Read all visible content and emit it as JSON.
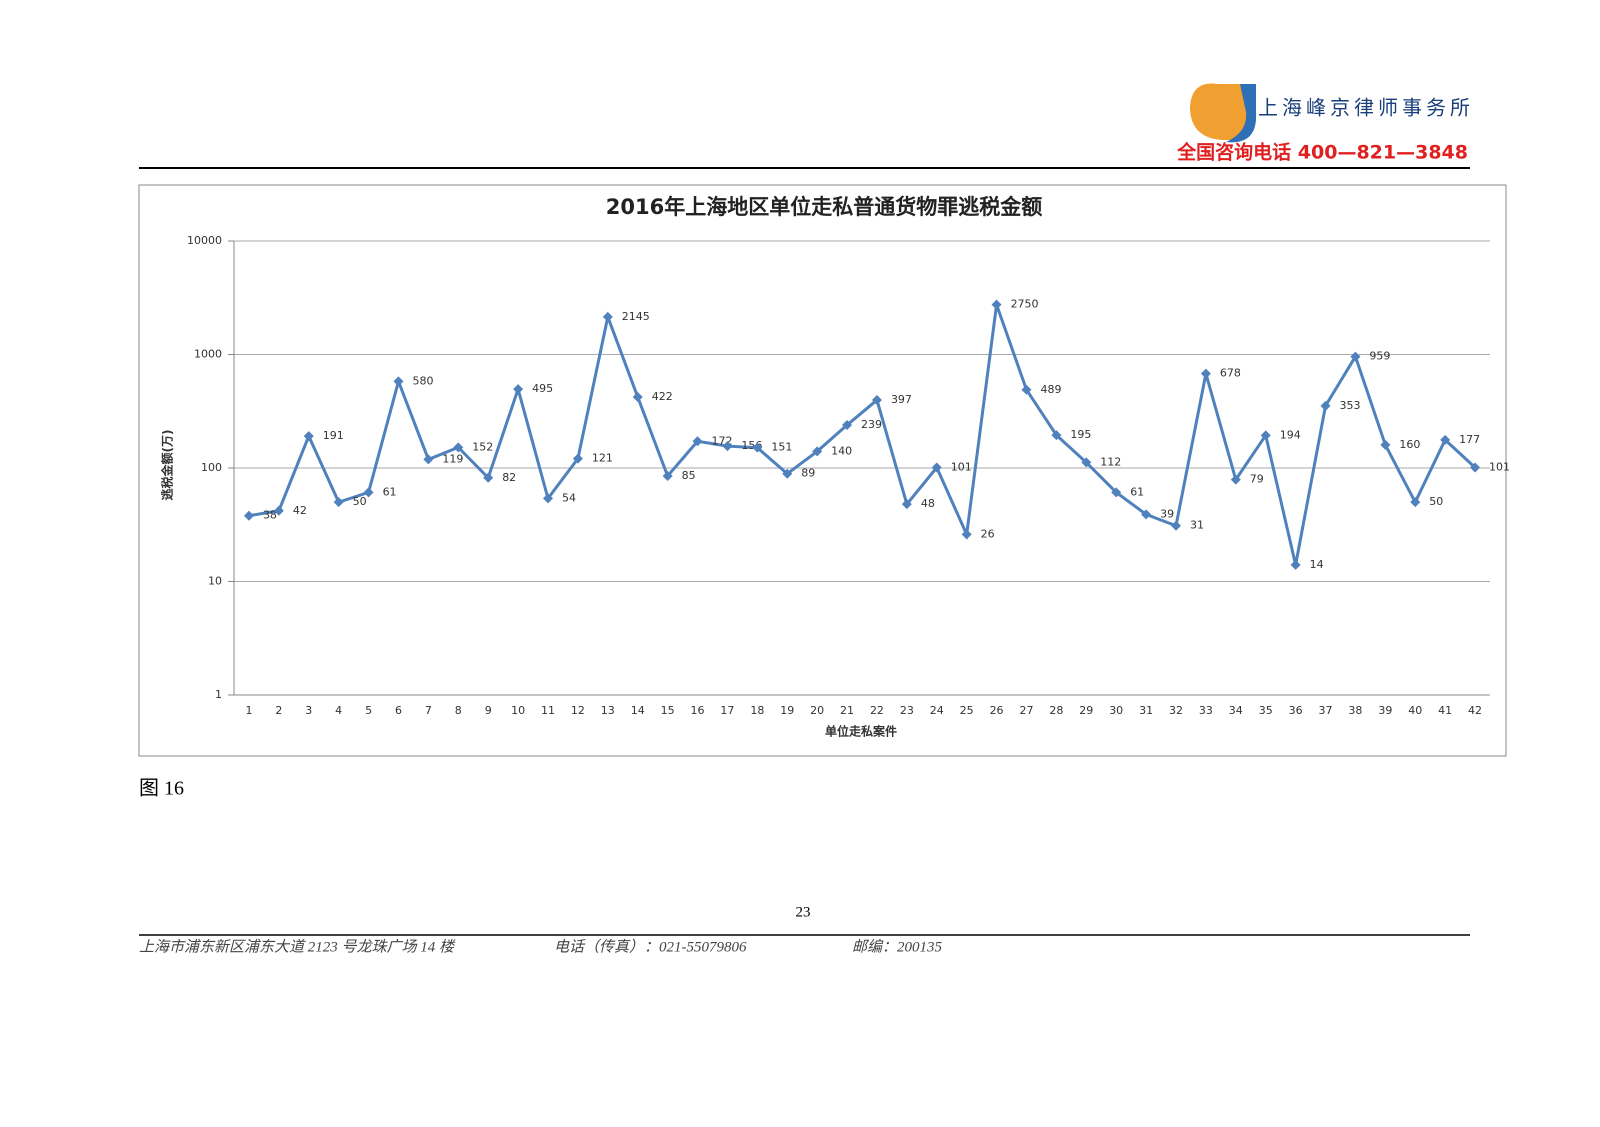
{
  "header": {
    "firm": "上海峰京律师事务所",
    "hotline": "全国咨询电话 400—821—3848"
  },
  "chart_data": {
    "type": "line",
    "title": "2016年上海地区单位走私普通货物罪逃税金额",
    "y_label": "逃税金额(万)",
    "x_label": "单位走私案件",
    "categories": [
      "1",
      "2",
      "3",
      "4",
      "5",
      "6",
      "7",
      "8",
      "9",
      "10",
      "11",
      "12",
      "13",
      "14",
      "15",
      "16",
      "17",
      "18",
      "19",
      "20",
      "21",
      "22",
      "23",
      "24",
      "25",
      "26",
      "27",
      "28",
      "29",
      "30",
      "31",
      "32",
      "33",
      "34",
      "35",
      "36",
      "37",
      "38",
      "39",
      "40",
      "41",
      "42"
    ],
    "values": [
      38,
      42,
      191,
      50,
      61,
      580,
      119,
      152,
      82,
      495,
      54,
      121,
      2145,
      422,
      85,
      172,
      156,
      151,
      89,
      140,
      239,
      397,
      48,
      101,
      26,
      2750,
      489,
      195,
      112,
      61,
      39,
      31,
      678,
      79,
      194,
      14,
      353,
      959,
      160,
      50,
      177,
      101
    ],
    "color": "#4f81bd",
    "log_scale": true,
    "ylim": [
      1,
      10000
    ],
    "yticks": [
      1,
      10,
      100,
      1000,
      10000
    ],
    "grid": true
  },
  "caption": "图 16",
  "page_number": "23",
  "footer": {
    "address": "上海市浦东新区浦东大道 2123 号龙珠广场 14 楼",
    "phone": "电话（传真）：021-55079806",
    "postcode": "邮编：200135"
  }
}
